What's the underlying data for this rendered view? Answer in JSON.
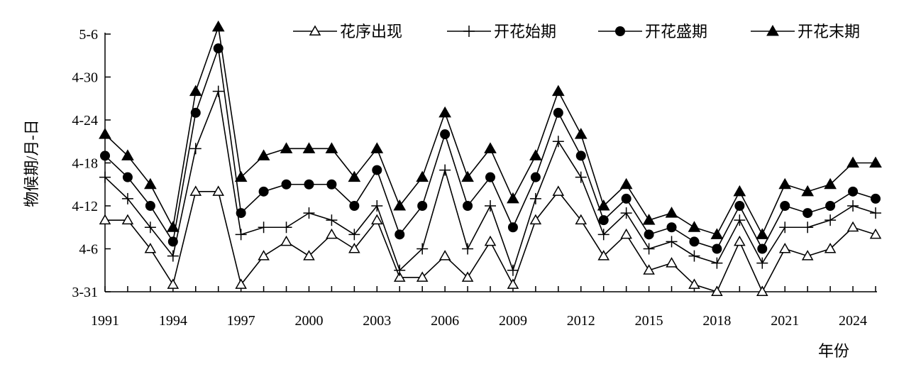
{
  "chart_data": {
    "type": "line",
    "xlabel": "年份",
    "ylabel": "物候期/月-日",
    "x": [
      1991,
      1992,
      1993,
      1994,
      1995,
      1996,
      1997,
      1998,
      1999,
      2000,
      2001,
      2002,
      2003,
      2004,
      2005,
      2006,
      2007,
      2008,
      2009,
      2010,
      2011,
      2012,
      2013,
      2014,
      2015,
      2016,
      2017,
      2018,
      2019,
      2020,
      2021,
      2022,
      2023,
      2024,
      2025
    ],
    "x_tick_labels": [
      "1991",
      "1994",
      "1997",
      "2000",
      "2003",
      "2006",
      "2009",
      "2012",
      "2015",
      "2018",
      "2021",
      "2024"
    ],
    "x_tick_values": [
      1991,
      1994,
      1997,
      2000,
      2003,
      2006,
      2009,
      2012,
      2015,
      2018,
      2021,
      2024
    ],
    "y_unit": "days after 3-31",
    "y_tick_labels": [
      "3-31",
      "4-6",
      "4-12",
      "4-18",
      "4-24",
      "4-30",
      "5-6"
    ],
    "y_tick_values": [
      0,
      6,
      12,
      18,
      24,
      30,
      36
    ],
    "ylim": [
      0,
      36
    ],
    "legend_position": "top-right",
    "series": [
      {
        "name": "花序出现",
        "marker": "open-triangle",
        "values": [
          10,
          10,
          6,
          1,
          14,
          14,
          1,
          5,
          7,
          5,
          8,
          6,
          10,
          2,
          2,
          5,
          2,
          7,
          1,
          10,
          14,
          10,
          5,
          8,
          3,
          4,
          1,
          0,
          7,
          0,
          6,
          5,
          6,
          9,
          8
        ]
      },
      {
        "name": "开花始期",
        "marker": "plus",
        "values": [
          16,
          13,
          9,
          5,
          20,
          28,
          8,
          9,
          9,
          11,
          10,
          8,
          12,
          3,
          6,
          17,
          6,
          12,
          3,
          13,
          21,
          16,
          8,
          11,
          6,
          7,
          5,
          4,
          10,
          4,
          9,
          9,
          10,
          12,
          11
        ]
      },
      {
        "name": "开花盛期",
        "marker": "filled-circle",
        "values": [
          19,
          16,
          12,
          7,
          25,
          34,
          11,
          14,
          15,
          15,
          15,
          12,
          17,
          8,
          12,
          22,
          12,
          16,
          9,
          16,
          25,
          19,
          10,
          13,
          8,
          9,
          7,
          6,
          12,
          6,
          12,
          11,
          12,
          14,
          13
        ]
      },
      {
        "name": "开花末期",
        "marker": "filled-triangle",
        "values": [
          22,
          19,
          15,
          9,
          28,
          37,
          16,
          19,
          20,
          20,
          20,
          16,
          20,
          12,
          16,
          25,
          16,
          20,
          13,
          19,
          28,
          22,
          12,
          15,
          10,
          11,
          9,
          8,
          14,
          8,
          15,
          14,
          15,
          18,
          18
        ]
      }
    ]
  }
}
